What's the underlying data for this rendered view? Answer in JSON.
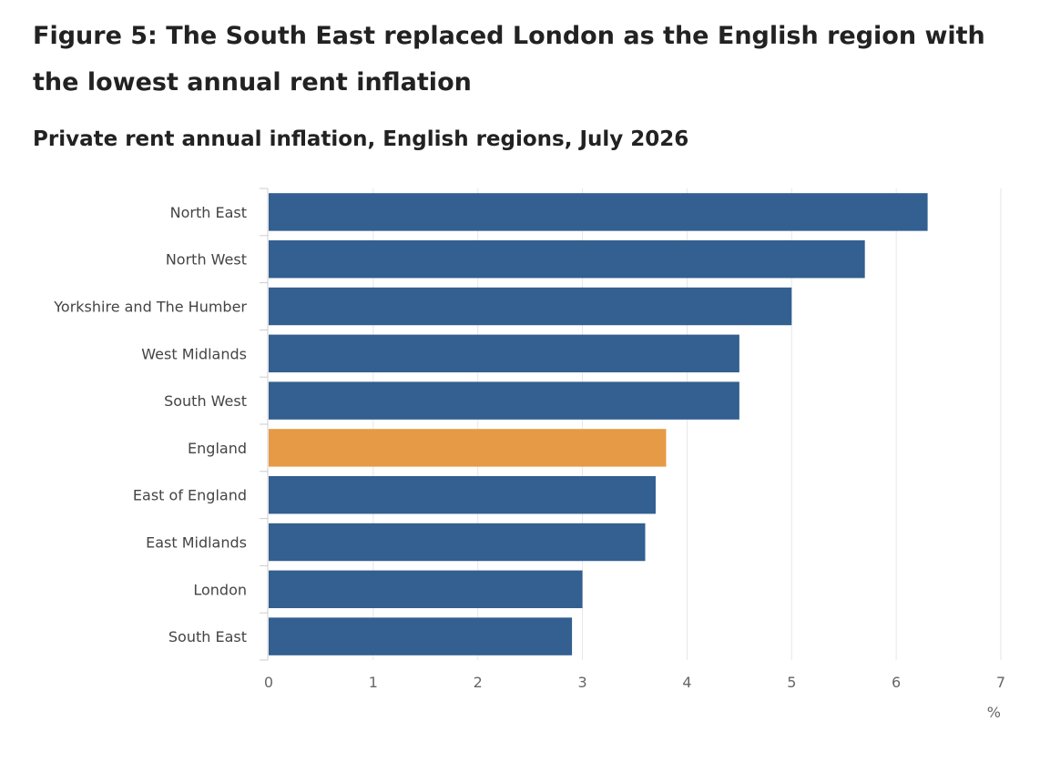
{
  "chart_data": {
    "type": "bar",
    "orientation": "horizontal",
    "title": "Figure 5: The South East replaced London as the English region with the lowest annual rent inflation",
    "subtitle": "Private rent annual inflation, English regions, July 2026",
    "xlabel": "%",
    "ylabel": "",
    "xlim": [
      0,
      7
    ],
    "xticks": [
      "0",
      "1",
      "2",
      "3",
      "4",
      "5",
      "6",
      "7"
    ],
    "grid": true,
    "legend": "none",
    "categories": [
      "North East",
      "North West",
      "Yorkshire and The Humber",
      "West Midlands",
      "South West",
      "England",
      "East of England",
      "East Midlands",
      "London",
      "South East"
    ],
    "values": [
      6.3,
      5.7,
      5.0,
      4.5,
      4.5,
      3.8,
      3.7,
      3.6,
      3.0,
      2.9
    ],
    "colors": {
      "default": "#335f91",
      "highlight": "#e69a45",
      "grid": "#e6e6e6",
      "axis": "#cccccc",
      "tick_text": "#666666",
      "label_text": "#444444"
    },
    "highlight_category": "England"
  }
}
